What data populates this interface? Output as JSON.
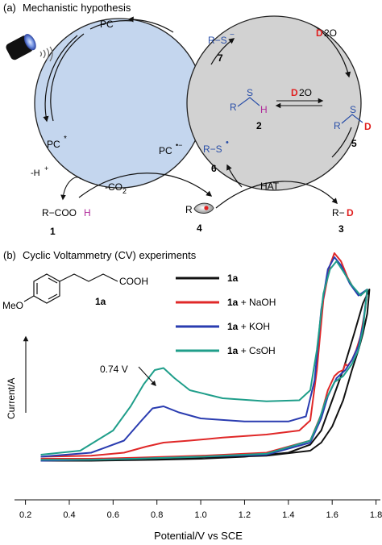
{
  "panel_a": {
    "label": "(a)",
    "title": "Mechanistic hypothesis",
    "pc": "PC",
    "pc_star": "PC",
    "pc_star_sup": "*",
    "pc_radical": "PC",
    "pc_radical_sup": "•−",
    "cmpd7_r": "R−S",
    "cmpd7_sup": "−",
    "cmpd7_num": "7",
    "d2o_top_d": "D",
    "d2o_top_rest": "2O",
    "d2o_mid_d": "D",
    "d2o_mid_rest": "2O",
    "cmpd2_r": "R",
    "cmpd2_s": "S",
    "cmpd2_h": "H",
    "cmpd2_num": "2",
    "cmpd5_r": "R",
    "cmpd5_s": "S",
    "cmpd5_d": "D",
    "cmpd5_num": "5",
    "cmpd6_r": "R−S",
    "cmpd6_sup": "•",
    "cmpd6_num": "6",
    "minus_h": "-H",
    "minus_h_sup": "+",
    "minus_co2": "-CO",
    "minus_co2_sub": "2",
    "hat": "HAT",
    "cmpd1_a": "R−COO",
    "cmpd1_h": "H",
    "cmpd1_num": "1",
    "cmpd4_r": "R",
    "cmpd4_num": "4",
    "cmpd3_r": "R−",
    "cmpd3_d": "D",
    "cmpd3_num": "3",
    "colors": {
      "left_cycle": "#c4d6ee",
      "right_cycle": "#d2d2d2",
      "blue_text": "#2a4fa8",
      "red_d": "#e02020",
      "purple_h": "#b02a9a"
    }
  },
  "panel_b": {
    "label": "(b)",
    "title": "Cyclic Voltammetry (CV) experiments",
    "structure_meo": "MeO",
    "structure_cooh": "COOH",
    "structure_label": "1a",
    "annotation": "0.74 V",
    "ylabel": "Current/A"
  },
  "chart_data": {
    "type": "line",
    "xlabel": "Potential/V vs SCE",
    "ylabel": "Current/A",
    "xlim": [
      0.15,
      1.82
    ],
    "xticks": [
      "0.2",
      "0.4",
      "0.6",
      "0.8",
      "1.0",
      "1.2",
      "1.4",
      "1.6",
      "1.8"
    ],
    "legend_position": "top-right",
    "annotation": {
      "text": "0.74 V",
      "x": 0.83
    },
    "series": [
      {
        "name": "1a",
        "legend_bold": "1a",
        "legend_rest": "",
        "color": "#111111",
        "forward": [
          [
            0.27,
            0.05
          ],
          [
            0.5,
            0.05
          ],
          [
            0.8,
            0.055
          ],
          [
            1.0,
            0.06
          ],
          [
            1.2,
            0.07
          ],
          [
            1.4,
            0.09
          ],
          [
            1.5,
            0.13
          ],
          [
            1.55,
            0.2
          ],
          [
            1.6,
            0.35
          ],
          [
            1.65,
            0.5
          ],
          [
            1.7,
            0.68
          ],
          [
            1.74,
            0.83
          ],
          [
            1.77,
            0.9
          ]
        ],
        "reverse": [
          [
            1.77,
            0.9
          ],
          [
            1.76,
            0.78
          ],
          [
            1.74,
            0.68
          ],
          [
            1.72,
            0.6
          ],
          [
            1.69,
            0.5
          ],
          [
            1.65,
            0.35
          ],
          [
            1.6,
            0.22
          ],
          [
            1.55,
            0.14
          ],
          [
            1.5,
            0.1
          ],
          [
            1.3,
            0.075
          ],
          [
            1.0,
            0.065
          ],
          [
            0.7,
            0.058
          ],
          [
            0.5,
            0.055
          ],
          [
            0.27,
            0.05
          ]
        ]
      },
      {
        "name": "1a + NaOH",
        "legend_bold": "1a",
        "legend_rest": " + NaOH",
        "color": "#e02828",
        "forward": [
          [
            0.27,
            0.07
          ],
          [
            0.5,
            0.075
          ],
          [
            0.65,
            0.09
          ],
          [
            0.75,
            0.12
          ],
          [
            0.83,
            0.14
          ],
          [
            0.95,
            0.15
          ],
          [
            1.1,
            0.165
          ],
          [
            1.3,
            0.18
          ],
          [
            1.45,
            0.2
          ],
          [
            1.5,
            0.25
          ],
          [
            1.53,
            0.5
          ],
          [
            1.56,
            0.85
          ],
          [
            1.59,
            1.02
          ],
          [
            1.61,
            1.08
          ],
          [
            1.64,
            1.04
          ],
          [
            1.67,
            0.96
          ],
          [
            1.7,
            0.9
          ],
          [
            1.73,
            0.87
          ],
          [
            1.76,
            0.9
          ]
        ],
        "reverse": [
          [
            1.76,
            0.9
          ],
          [
            1.75,
            0.8
          ],
          [
            1.73,
            0.67
          ],
          [
            1.71,
            0.6
          ],
          [
            1.69,
            0.55
          ],
          [
            1.67,
            0.52
          ],
          [
            1.66,
            0.53
          ],
          [
            1.65,
            0.5
          ],
          [
            1.63,
            0.49
          ],
          [
            1.61,
            0.47
          ],
          [
            1.58,
            0.4
          ],
          [
            1.55,
            0.28
          ],
          [
            1.5,
            0.15
          ],
          [
            1.3,
            0.09
          ],
          [
            1.0,
            0.075
          ],
          [
            0.7,
            0.065
          ],
          [
            0.5,
            0.06
          ],
          [
            0.27,
            0.06
          ]
        ]
      },
      {
        "name": "1a + KOH",
        "legend_bold": "1a",
        "legend_rest": " + KOH",
        "color": "#2a3cb0",
        "forward": [
          [
            0.27,
            0.07
          ],
          [
            0.5,
            0.09
          ],
          [
            0.65,
            0.15
          ],
          [
            0.73,
            0.25
          ],
          [
            0.78,
            0.31
          ],
          [
            0.83,
            0.32
          ],
          [
            0.9,
            0.29
          ],
          [
            1.0,
            0.26
          ],
          [
            1.2,
            0.245
          ],
          [
            1.4,
            0.245
          ],
          [
            1.48,
            0.27
          ],
          [
            1.52,
            0.45
          ],
          [
            1.55,
            0.8
          ],
          [
            1.58,
            1.0
          ],
          [
            1.61,
            1.06
          ],
          [
            1.64,
            1.02
          ],
          [
            1.68,
            0.93
          ],
          [
            1.72,
            0.87
          ],
          [
            1.76,
            0.9
          ]
        ],
        "reverse": [
          [
            1.76,
            0.9
          ],
          [
            1.74,
            0.72
          ],
          [
            1.72,
            0.62
          ],
          [
            1.69,
            0.55
          ],
          [
            1.66,
            0.5
          ],
          [
            1.62,
            0.46
          ],
          [
            1.58,
            0.37
          ],
          [
            1.55,
            0.26
          ],
          [
            1.5,
            0.14
          ],
          [
            1.3,
            0.08
          ],
          [
            1.0,
            0.07
          ],
          [
            0.7,
            0.06
          ],
          [
            0.5,
            0.055
          ],
          [
            0.27,
            0.05
          ]
        ]
      },
      {
        "name": "1a + CsOH",
        "legend_bold": "1a",
        "legend_rest": " + CsOH",
        "color": "#1f9e8a",
        "forward": [
          [
            0.27,
            0.08
          ],
          [
            0.45,
            0.1
          ],
          [
            0.6,
            0.2
          ],
          [
            0.68,
            0.32
          ],
          [
            0.74,
            0.43
          ],
          [
            0.79,
            0.5
          ],
          [
            0.83,
            0.51
          ],
          [
            0.88,
            0.46
          ],
          [
            0.95,
            0.4
          ],
          [
            1.1,
            0.36
          ],
          [
            1.3,
            0.345
          ],
          [
            1.45,
            0.35
          ],
          [
            1.5,
            0.4
          ],
          [
            1.53,
            0.6
          ],
          [
            1.56,
            0.88
          ],
          [
            1.59,
            1.0
          ],
          [
            1.62,
            1.04
          ],
          [
            1.65,
            0.99
          ],
          [
            1.69,
            0.92
          ],
          [
            1.73,
            0.87
          ],
          [
            1.76,
            0.9
          ]
        ],
        "reverse": [
          [
            1.76,
            0.9
          ],
          [
            1.74,
            0.7
          ],
          [
            1.72,
            0.6
          ],
          [
            1.69,
            0.53
          ],
          [
            1.65,
            0.47
          ],
          [
            1.61,
            0.44
          ],
          [
            1.57,
            0.35
          ],
          [
            1.54,
            0.25
          ],
          [
            1.5,
            0.15
          ],
          [
            1.3,
            0.085
          ],
          [
            1.0,
            0.07
          ],
          [
            0.7,
            0.06
          ],
          [
            0.5,
            0.055
          ],
          [
            0.27,
            0.055
          ]
        ]
      }
    ]
  }
}
